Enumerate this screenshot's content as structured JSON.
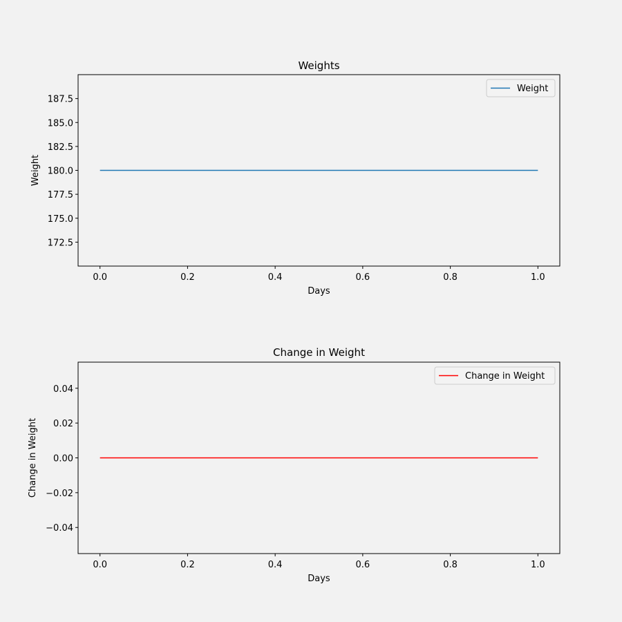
{
  "figure": {
    "background": "#f2f2f2"
  },
  "chart_data": [
    {
      "type": "line",
      "title": "Weights",
      "xlabel": "Days",
      "ylabel": "Weight",
      "x": [
        0.0,
        1.0
      ],
      "series": [
        {
          "name": "Weight",
          "values": [
            180.0,
            180.0
          ],
          "color": "#1f77b4"
        }
      ],
      "xlim": [
        -0.05,
        1.05
      ],
      "ylim": [
        170.0,
        190.0
      ],
      "xticks": [
        0.0,
        0.2,
        0.4,
        0.6,
        0.8,
        1.0
      ],
      "xtick_labels": [
        "0.0",
        "0.2",
        "0.4",
        "0.6",
        "0.8",
        "1.0"
      ],
      "yticks": [
        172.5,
        175.0,
        177.5,
        180.0,
        182.5,
        185.0,
        187.5
      ],
      "ytick_labels": [
        "172.5",
        "175.0",
        "177.5",
        "180.0",
        "182.5",
        "185.0",
        "187.5"
      ],
      "grid": false,
      "legend_position": "top-right"
    },
    {
      "type": "line",
      "title": "Change in Weight",
      "xlabel": "Days",
      "ylabel": "Change in Weight",
      "x": [
        0.0,
        1.0
      ],
      "series": [
        {
          "name": "Change in Weight",
          "values": [
            0.0,
            0.0
          ],
          "color": "#ff0000"
        }
      ],
      "xlim": [
        -0.05,
        1.05
      ],
      "ylim": [
        -0.055,
        0.055
      ],
      "xticks": [
        0.0,
        0.2,
        0.4,
        0.6,
        0.8,
        1.0
      ],
      "xtick_labels": [
        "0.0",
        "0.2",
        "0.4",
        "0.6",
        "0.8",
        "1.0"
      ],
      "yticks": [
        -0.04,
        -0.02,
        0.0,
        0.02,
        0.04
      ],
      "ytick_labels": [
        "−0.04",
        "−0.02",
        "0.00",
        "0.02",
        "0.04"
      ],
      "grid": false,
      "legend_position": "top-right"
    }
  ]
}
